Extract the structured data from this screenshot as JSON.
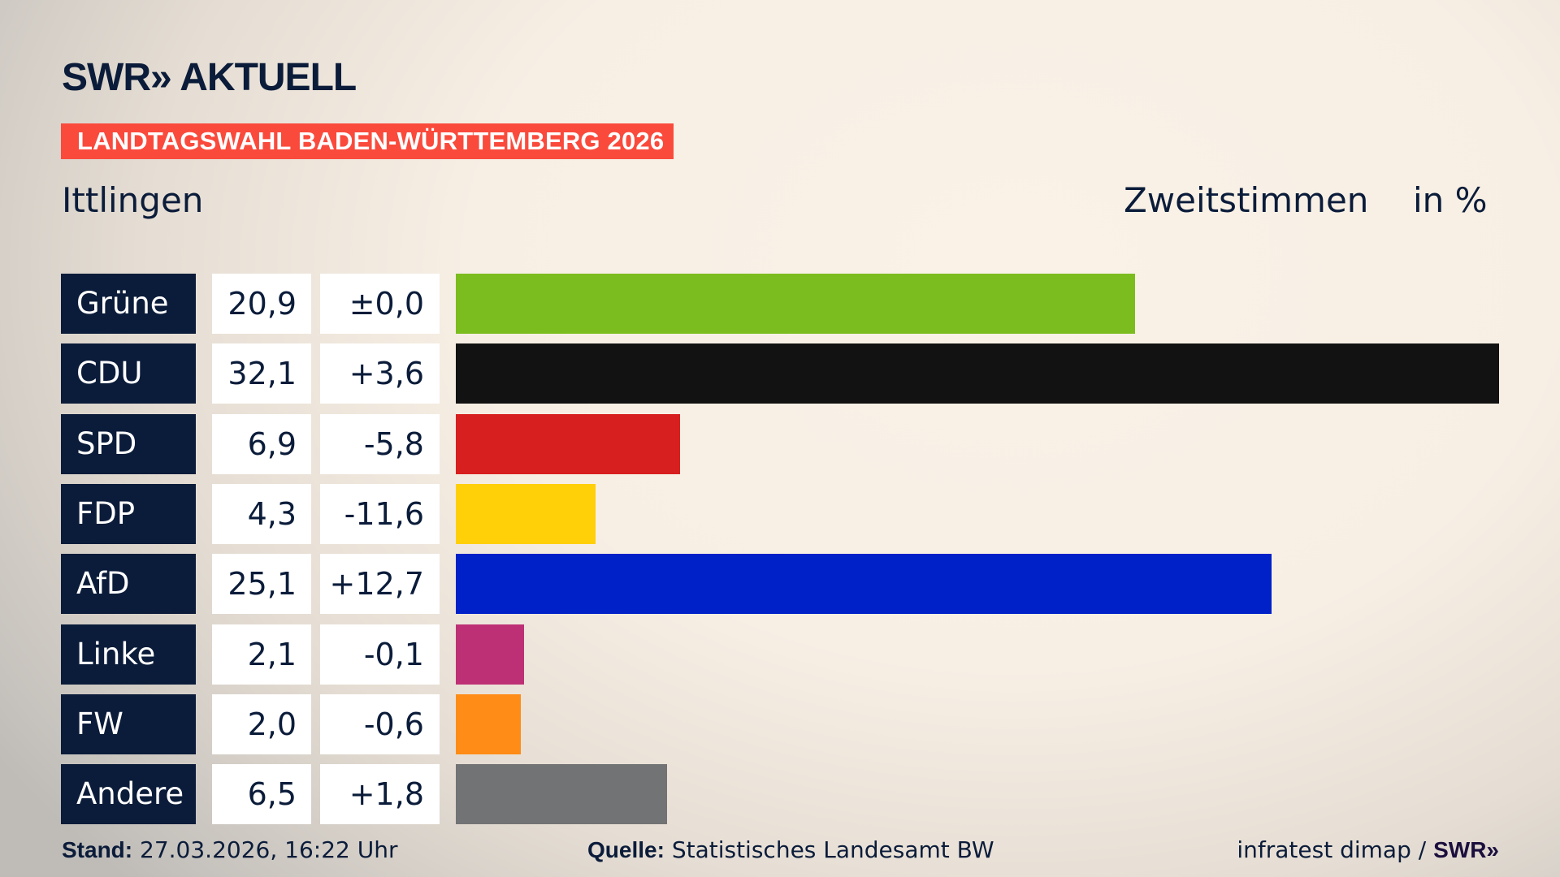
{
  "header": {
    "logo": "SWR» AKTUELL",
    "banner": "LANDTAGSWAHL BADEN-WÜRTTEMBERG 2026",
    "region": "Ittlingen",
    "metric": "Zweitstimmen",
    "unit": "in %"
  },
  "chart_data": {
    "type": "bar",
    "orientation": "horizontal",
    "categories": [
      "Grüne",
      "CDU",
      "SPD",
      "FDP",
      "AfD",
      "Linke",
      "FW",
      "Andere"
    ],
    "values": [
      20.9,
      32.1,
      6.9,
      4.3,
      25.1,
      2.1,
      2.0,
      6.5
    ],
    "value_labels": [
      "20,9",
      "32,1",
      "6,9",
      "4,3",
      "25,1",
      "2,1",
      "2,0",
      "6,5"
    ],
    "diff_labels": [
      "±0,0",
      "+3,6",
      "-5,8",
      "-11,6",
      "+12,7",
      "-0,1",
      "-0,6",
      "+1,8"
    ],
    "colors": [
      "#7bbd1e",
      "#121212",
      "#d81f1f",
      "#ffcf07",
      "#0021c8",
      "#bd3075",
      "#ff8c16",
      "#727374"
    ],
    "xlim": [
      0,
      32.1
    ],
    "grid": false
  },
  "footer": {
    "stand_label": "Stand:",
    "stand_value": " 27.03.2026, 16:22 Uhr",
    "quelle_label": "Quelle:",
    "quelle_value": " Statistisches Landesamt BW",
    "credit": "infratest dimap / ",
    "credit_logo": "SWR»"
  }
}
